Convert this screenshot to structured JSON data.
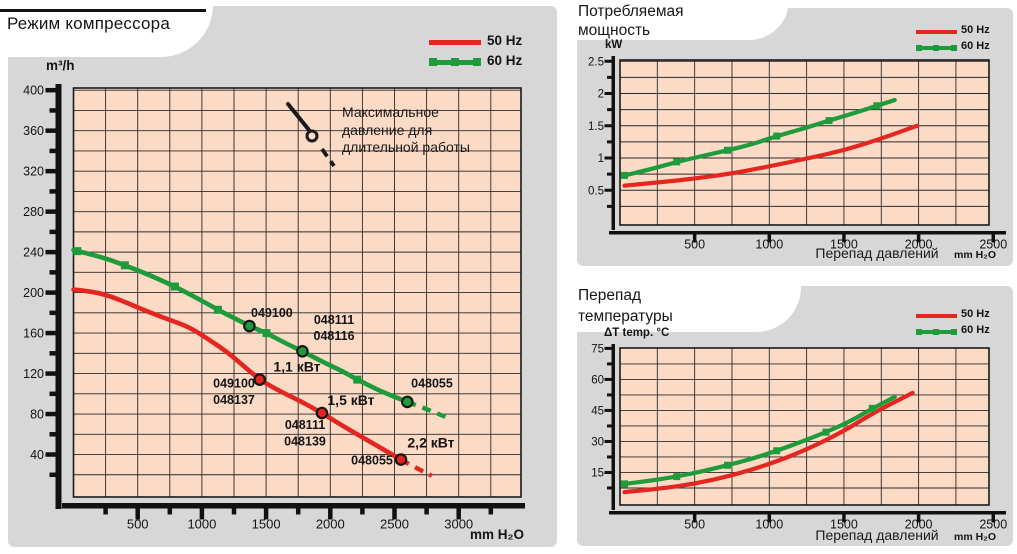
{
  "colors": {
    "page_bg": "#ffffff",
    "panel_grey": "#d7d7d7",
    "plot_bg": "#fbdac6",
    "grid": "#2b2b2b",
    "frame": "#1a1a1a",
    "axis": "#111111",
    "red": "#e3261f",
    "green": "#1e9b3a",
    "ink": "#1a1a1a"
  },
  "chart_data": [
    {
      "id": "compressor-mode",
      "type": "line",
      "title": "Режим компрессора",
      "ylabel": "m³/h",
      "xlabel": "",
      "xunit": "mm H₂O",
      "xlim": [
        0,
        3485
      ],
      "ylim": [
        0,
        402
      ],
      "grid": true,
      "grid_x_step": 250,
      "grid_y_step": 20,
      "x_ticks": [
        500,
        1000,
        1500,
        2000,
        2500,
        3000
      ],
      "x_minor_ticks": [
        250,
        750,
        1250,
        1750,
        2250,
        2750,
        3250
      ],
      "y_ticks": [
        40,
        80,
        120,
        160,
        200,
        240,
        280,
        320,
        360,
        400
      ],
      "y_minor_ticks": [
        20,
        60,
        100,
        140,
        180,
        220,
        260,
        300,
        340,
        380
      ],
      "legend": [
        {
          "label": "50 Hz",
          "color_key": "red"
        },
        {
          "label": "60 Hz",
          "color_key": "green"
        }
      ],
      "note": {
        "text": "Максимальное\nдавление для\nдлительной работы"
      },
      "series": [
        {
          "name": "50 Hz",
          "color_key": "red",
          "points": [
            [
              0,
              203
            ],
            [
              150,
              201
            ],
            [
              300,
              196
            ],
            [
              450,
              188
            ],
            [
              600,
              180
            ],
            [
              750,
              173
            ],
            [
              900,
              166
            ],
            [
              1050,
              154
            ],
            [
              1200,
              141
            ],
            [
              1320,
              128
            ],
            [
              1450,
              114
            ],
            [
              1600,
              103
            ],
            [
              1780,
              92
            ],
            [
              1935,
              81
            ],
            [
              2100,
              68
            ],
            [
              2250,
              57
            ],
            [
              2400,
              46
            ],
            [
              2550,
              35
            ]
          ],
          "dash": [
            [
              2550,
              35
            ],
            [
              2680,
              26
            ],
            [
              2790,
              19
            ]
          ],
          "squares": [],
          "circles": [
            [
              1450,
              114
            ],
            [
              1935,
              81
            ],
            [
              2550,
              35
            ]
          ]
        },
        {
          "name": "60 Hz",
          "color_key": "green",
          "points": [
            [
              0,
              242
            ],
            [
              200,
              236
            ],
            [
              400,
              227
            ],
            [
              600,
              217
            ],
            [
              790,
              206
            ],
            [
              1000,
              192
            ],
            [
              1125,
              183
            ],
            [
              1250,
              175
            ],
            [
              1370,
              167
            ],
            [
              1503,
              160
            ],
            [
              1650,
              150
            ],
            [
              1783,
              142
            ],
            [
              1950,
              131
            ],
            [
              2100,
              122
            ],
            [
              2210,
              114
            ],
            [
              2400,
              102
            ],
            [
              2600,
              92
            ]
          ],
          "dash": [
            [
              2600,
              92
            ],
            [
              2750,
              85
            ],
            [
              2900,
              77
            ]
          ],
          "squares": [
            [
              30,
              241
            ],
            [
              400,
              227
            ],
            [
              790,
              206
            ],
            [
              1125,
              183
            ],
            [
              1503,
              160
            ],
            [
              2210,
              114
            ]
          ],
          "circles": [
            [
              1370,
              167
            ],
            [
              1783,
              142
            ],
            [
              2600,
              92
            ]
          ]
        }
      ],
      "point_labels": [
        {
          "text": "049100",
          "x": 1545,
          "y": 180
        },
        {
          "text": "048111",
          "x": 2029,
          "y": 173
        },
        {
          "text": "048116",
          "x": 2029,
          "y": 157
        },
        {
          "text": "1,1 кВт",
          "x": 1740,
          "y": 126,
          "size": 14
        },
        {
          "text": "049100",
          "x": 1250,
          "y": 110
        },
        {
          "text": "048137",
          "x": 1250,
          "y": 94
        },
        {
          "text": "1,5 кВт",
          "x": 2161,
          "y": 93,
          "size": 14
        },
        {
          "text": "048111",
          "x": 1803,
          "y": 69
        },
        {
          "text": "048139",
          "x": 1803,
          "y": 53
        },
        {
          "text": "048055",
          "x": 2792,
          "y": 110
        },
        {
          "text": "2,2 кВт",
          "x": 2784,
          "y": 51,
          "size": 14
        },
        {
          "text": "048055",
          "x": 2325,
          "y": 34
        }
      ]
    },
    {
      "id": "power-consumption",
      "type": "line",
      "title": "Потребляемая мощность",
      "title_lines": [
        "Потребляемая",
        "мощность"
      ],
      "ylabel": "kW",
      "xlabel": "Перепад давлений",
      "xunit": "mm H₂O",
      "xlim": [
        0,
        2471
      ],
      "ylim": [
        0,
        2.52
      ],
      "grid": true,
      "grid_x_step": 250,
      "grid_y_step": 0.25,
      "x_ticks": [
        500,
        1000,
        1500,
        2000,
        2500
      ],
      "x_minor_ticks": [],
      "y_ticks": [
        0.5,
        1,
        1.5,
        2,
        2.5
      ],
      "y_minor_ticks": [
        0.25,
        0.75,
        1.25,
        1.75,
        2.25
      ],
      "legend": [
        {
          "label": "50 Hz",
          "color_key": "red"
        },
        {
          "label": "60 Hz",
          "color_key": "green"
        }
      ],
      "series": [
        {
          "name": "50 Hz",
          "color_key": "red",
          "points": [
            [
              30,
              0.57
            ],
            [
              250,
              0.62
            ],
            [
              500,
              0.68
            ],
            [
              750,
              0.76
            ],
            [
              1000,
              0.87
            ],
            [
              1250,
              0.99
            ],
            [
              1500,
              1.12
            ],
            [
              1750,
              1.3
            ],
            [
              1990,
              1.5
            ]
          ],
          "dash": [],
          "squares": [],
          "circles": []
        },
        {
          "name": "60 Hz",
          "color_key": "green",
          "points": [
            [
              30,
              0.73
            ],
            [
              200,
              0.82
            ],
            [
              380,
              0.94
            ],
            [
              550,
              1.03
            ],
            [
              720,
              1.12
            ],
            [
              880,
              1.21
            ],
            [
              1050,
              1.34
            ],
            [
              1220,
              1.45
            ],
            [
              1400,
              1.58
            ],
            [
              1560,
              1.69
            ],
            [
              1720,
              1.81
            ],
            [
              1840,
              1.9
            ]
          ],
          "dash": [],
          "squares": [
            [
              30,
              0.73
            ],
            [
              380,
              0.94
            ],
            [
              720,
              1.12
            ],
            [
              1050,
              1.34
            ],
            [
              1400,
              1.58
            ],
            [
              1720,
              1.81
            ]
          ],
          "circles": []
        }
      ],
      "point_labels": []
    },
    {
      "id": "temperature-difference",
      "type": "line",
      "title": "Перепад температуры",
      "title_lines": [
        "Перепад",
        "температуры"
      ],
      "ylabel": "ΔT temp. °C",
      "xlabel": "Перепад давлений",
      "xunit": "mm H₂O",
      "xlim": [
        0,
        2471
      ],
      "ylim": [
        0,
        76
      ],
      "grid": true,
      "grid_x_step": 250,
      "grid_y_step": 7.5,
      "x_ticks": [
        500,
        1000,
        1500,
        2000,
        2500
      ],
      "x_minor_ticks": [],
      "y_ticks": [
        15,
        30,
        45,
        60,
        75
      ],
      "y_minor_ticks": [
        7.5,
        22.5,
        37.5,
        52.5,
        67.5
      ],
      "legend": [
        {
          "label": "50 Hz",
          "color_key": "red"
        },
        {
          "label": "60 Hz",
          "color_key": "green"
        }
      ],
      "series": [
        {
          "name": "50 Hz",
          "color_key": "red",
          "points": [
            [
              30,
              5.5
            ],
            [
              250,
              7
            ],
            [
              500,
              9.5
            ],
            [
              750,
              13.5
            ],
            [
              1000,
              19
            ],
            [
              1250,
              26
            ],
            [
              1500,
              35
            ],
            [
              1700,
              44
            ],
            [
              1960,
              53.5
            ]
          ],
          "dash": [],
          "squares": [],
          "circles": []
        },
        {
          "name": "60 Hz",
          "color_key": "green",
          "points": [
            [
              30,
              9.5
            ],
            [
              200,
              11
            ],
            [
              380,
              13
            ],
            [
              550,
              15.5
            ],
            [
              720,
              18.5
            ],
            [
              880,
              21.5
            ],
            [
              1050,
              25.5
            ],
            [
              1220,
              30
            ],
            [
              1380,
              34.5
            ],
            [
              1550,
              40
            ],
            [
              1690,
              46
            ],
            [
              1840,
              51.5
            ]
          ],
          "dash": [],
          "squares": [
            [
              30,
              9.5
            ],
            [
              380,
              13
            ],
            [
              720,
              18.5
            ],
            [
              1050,
              25.5
            ],
            [
              1380,
              34.5
            ],
            [
              1690,
              46
            ]
          ],
          "circles": []
        }
      ],
      "point_labels": []
    }
  ]
}
